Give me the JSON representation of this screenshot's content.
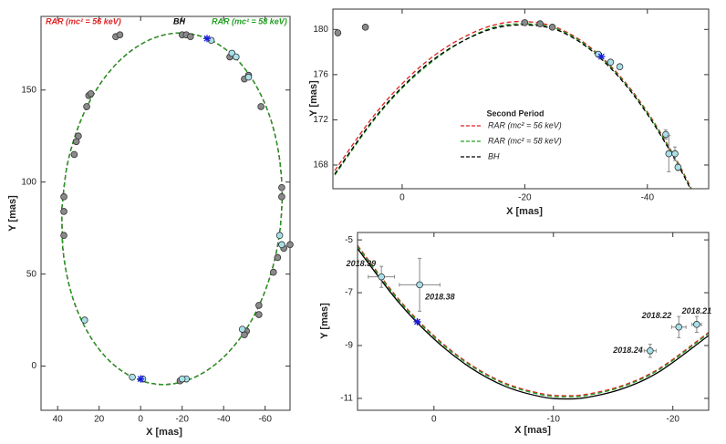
{
  "chart_data": [
    {
      "type": "line",
      "xlabel": "X [mas]",
      "ylabel": "Y [mas]",
      "legend": "top",
      "xlim": [
        48,
        -72
      ],
      "ylim": [
        -24,
        190
      ],
      "xticks": [
        40,
        20,
        0,
        -20,
        -40,
        -60
      ],
      "yticks": [
        0,
        50,
        100,
        150
      ],
      "series": [
        {
          "name": "RAR (mc² = 56 keV)",
          "color": "#e02020",
          "line": "dashed",
          "x": [
            38,
            35.2,
            28.9,
            19.7,
            8.0,
            -5.2,
            -19,
            -32.6,
            -45,
            -55.3,
            -62.9,
            -67.2,
            -68,
            -65.2,
            -58.9,
            -49.7,
            -38,
            -24.8,
            -11,
            2.6,
            15,
            25.3,
            32.9,
            37.2,
            38
          ],
          "values": [
            85.5,
            110.2,
            133.3,
            153.0,
            168.2,
            177.7,
            181,
            177.7,
            168.2,
            153.0,
            133.3,
            110.2,
            85.5,
            60.8,
            37.7,
            18.0,
            2.8,
            -6.7,
            -10,
            -6.7,
            2.8,
            18.0,
            37.7,
            60.8,
            85.5
          ]
        },
        {
          "name": "BH",
          "color": "#000000",
          "line": "dashed",
          "x": [
            38,
            35.2,
            28.9,
            19.7,
            8.0,
            -5.2,
            -19,
            -32.6,
            -45,
            -55.3,
            -62.9,
            -67.2,
            -68,
            -65.2,
            -58.9,
            -49.7,
            -38,
            -24.8,
            -11,
            2.6,
            15,
            25.3,
            32.9,
            37.2,
            38
          ],
          "values": [
            85.5,
            110.2,
            133.3,
            153.0,
            168.2,
            177.7,
            181,
            177.7,
            168.2,
            153.0,
            133.3,
            110.2,
            85.5,
            60.8,
            37.7,
            18.0,
            2.8,
            -6.7,
            -10,
            -6.7,
            2.8,
            18.0,
            37.7,
            60.8,
            85.5
          ]
        },
        {
          "name": "RAR (mc² = 58 keV)",
          "color": "#20a020",
          "line": "dashed",
          "x": [
            38,
            35.2,
            28.9,
            19.7,
            8.0,
            -5.2,
            -19,
            -32.6,
            -45,
            -55.3,
            -62.9,
            -67.2,
            -68,
            -65.2,
            -58.9,
            -49.7,
            -38,
            -24.8,
            -11,
            2.6,
            15,
            25.3,
            32.9,
            37.2,
            38
          ],
          "values": [
            85.5,
            110.2,
            133.3,
            153.0,
            168.2,
            177.7,
            181,
            177.7,
            168.2,
            153.0,
            133.3,
            110.2,
            85.5,
            60.8,
            37.7,
            18.0,
            2.8,
            -6.7,
            -10,
            -6.7,
            2.8,
            18.0,
            37.7,
            60.8,
            85.5
          ]
        },
        {
          "marker": "circle",
          "color": "#8a8a8a",
          "x": [
            37,
            37,
            37,
            32,
            31,
            30,
            26,
            25,
            24,
            12,
            10,
            -20,
            -22,
            -24,
            -43,
            -50,
            -52,
            -58,
            -68,
            -68,
            -72,
            -69,
            -66,
            -64,
            -57,
            -57,
            -51,
            -50,
            -19
          ],
          "values": [
            92,
            84,
            71,
            115,
            122,
            125,
            141,
            147,
            148,
            179,
            180,
            180,
            180,
            179,
            168,
            156,
            158,
            141,
            97,
            92,
            66,
            64,
            59,
            51,
            33,
            28,
            19,
            17,
            -8
          ]
        },
        {
          "marker": "circle",
          "color": "#a8e0ea",
          "x": [
            27,
            -34,
            -44,
            -46,
            -52,
            -67,
            -68,
            -49,
            -22,
            -20,
            4,
            -1
          ],
          "values": [
            25,
            177,
            170,
            168,
            157,
            71,
            66,
            20,
            -7,
            -7,
            -6,
            -7
          ]
        },
        {
          "marker": "star",
          "color": "#1a1ae0",
          "x": [
            -32,
            0
          ],
          "values": [
            178,
            -7
          ]
        }
      ]
    },
    {
      "type": "line",
      "xlabel": "X [mas]",
      "ylabel": "Y [mas]",
      "legend": "inside",
      "legend_title": "Second Period",
      "xlim": [
        11.3,
        -50
      ],
      "ylim": [
        165.9,
        181.8
      ],
      "xticks": [
        0,
        -20,
        -40
      ],
      "yticks": [
        168,
        172,
        176,
        180
      ],
      "series": [
        {
          "name": "RAR (mc² = 56 keV)",
          "color": "#e02020",
          "line": "dashed",
          "x": [
            11,
            5,
            0,
            -5,
            -10,
            -15,
            -20,
            -25,
            -30,
            -35,
            -40,
            -45,
            -48
          ],
          "values": [
            167.5,
            172.1,
            175.2,
            177.6,
            179.3,
            180.4,
            180.7,
            180.2,
            178.7,
            176.2,
            172.7,
            168.2,
            165.0
          ]
        },
        {
          "name": "RAR (mc² = 58 keV)",
          "color": "#20a020",
          "line": "dashed",
          "x": [
            11,
            5,
            0,
            -5,
            -10,
            -15,
            -20,
            -25,
            -30,
            -35,
            -40,
            -45,
            -48
          ],
          "values": [
            167.1,
            171.7,
            174.8,
            177.2,
            179.0,
            180.2,
            180.5,
            180.1,
            178.6,
            176.1,
            172.6,
            168.1,
            164.9
          ]
        },
        {
          "name": "BH",
          "color": "#000000",
          "line": "dashed",
          "x": [
            11,
            5,
            0,
            -5,
            -10,
            -15,
            -20,
            -25,
            -30,
            -35,
            -40,
            -45,
            -48
          ],
          "values": [
            167.2,
            171.8,
            174.9,
            177.3,
            179.0,
            180.1,
            180.4,
            180.0,
            178.5,
            176.0,
            172.5,
            168.0,
            164.8
          ]
        },
        {
          "marker": "circle",
          "color": "#8a8a8a",
          "x": [
            10.5,
            6,
            -20,
            -22.5,
            -24.5
          ],
          "values": [
            179.7,
            180.2,
            180.6,
            180.5,
            180.2
          ]
        },
        {
          "marker": "circle",
          "color": "#a8e0ea",
          "x": [
            -32,
            -34,
            -35.5,
            -43,
            -43.5,
            -44.5,
            -45
          ],
          "values": [
            177.8,
            177.1,
            176.7,
            170.7,
            169,
            169,
            167.8
          ],
          "yerr": [
            0.2,
            0.2,
            0.2,
            0.4,
            1.6,
            0.6,
            0.3
          ]
        },
        {
          "marker": "star",
          "color": "#1a1ae0",
          "x": [
            -32.5
          ],
          "values": [
            177.6
          ]
        }
      ]
    },
    {
      "type": "line",
      "xlabel": "X [mas]",
      "ylabel": "Y [mas]",
      "xlim": [
        6.4,
        -23
      ],
      "ylim": [
        -11.45,
        -4.72
      ],
      "xticks": [
        0,
        -10,
        -20
      ],
      "yticks": [
        -5,
        -7,
        -9,
        -11
      ],
      "series": [
        {
          "color": "#e02020",
          "line": "dashed",
          "x": [
            6.4,
            3,
            0,
            -3,
            -6,
            -9,
            -11,
            -13,
            -16,
            -19,
            -23
          ],
          "values": [
            -5.21,
            -7.22,
            -8.63,
            -9.7,
            -10.43,
            -10.82,
            -10.9,
            -10.83,
            -10.48,
            -9.83,
            -8.5
          ]
        },
        {
          "color": "#20a020",
          "line": "dashed",
          "x": [
            6.4,
            3,
            0,
            -3,
            -6,
            -9,
            -11,
            -13,
            -16,
            -19,
            -23
          ],
          "values": [
            -5.25,
            -7.26,
            -8.67,
            -9.74,
            -10.47,
            -10.86,
            -10.94,
            -10.87,
            -10.52,
            -9.87,
            -8.54
          ]
        },
        {
          "color": "#000000",
          "line": "solid",
          "x": [
            6.4,
            3,
            0,
            -3,
            -6,
            -9,
            -11,
            -13,
            -16,
            -19,
            -23
          ],
          "values": [
            -5.33,
            -7.34,
            -8.75,
            -9.82,
            -10.55,
            -10.94,
            -11.02,
            -10.95,
            -10.6,
            -9.95,
            -8.62
          ]
        },
        {
          "marker": "circle",
          "color": "#a8e0ea",
          "x": [
            4.4,
            1.2,
            -18.1,
            -20.5,
            -22
          ],
          "values": [
            -6.4,
            -6.7,
            -9.2,
            -8.3,
            -8.2
          ],
          "xerr": [
            1.1,
            1.7,
            0.5,
            0.6,
            0.4
          ],
          "yerr": [
            0.4,
            1.0,
            0.25,
            0.4,
            0.3
          ],
          "labels": [
            "2018.39",
            "2018.38",
            "2018.24",
            "2018.22",
            "2018.21"
          ]
        },
        {
          "marker": "star",
          "color": "#1a1ae0",
          "x": [
            1.4
          ],
          "values": [
            -8.1
          ]
        }
      ]
    }
  ]
}
